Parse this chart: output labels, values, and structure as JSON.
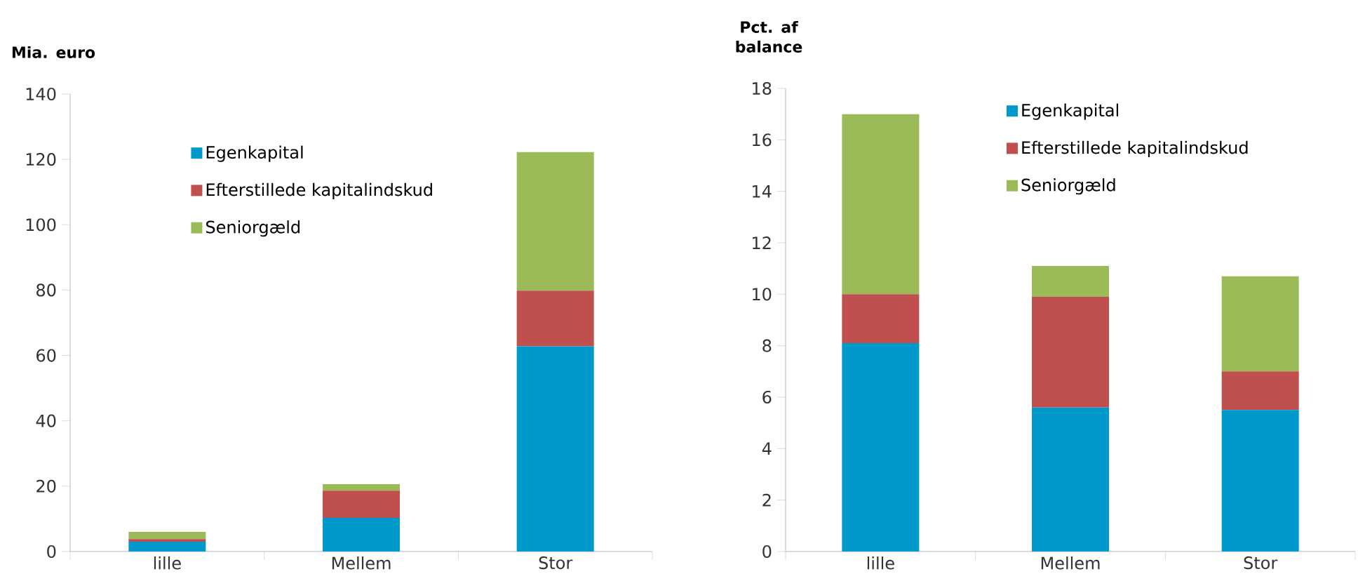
{
  "chart_data": [
    {
      "type": "bar",
      "stacked": true,
      "ylabel": "Mia. euro",
      "categories": [
        "lille",
        "Mellem",
        "Stor"
      ],
      "ylim": [
        0,
        140
      ],
      "yticks": [
        0,
        20,
        40,
        60,
        80,
        100,
        120,
        140
      ],
      "legend": "top left",
      "series": [
        {
          "name": "Egenkapital",
          "color": "#0099cc",
          "values": [
            3,
            10.3,
            62.8
          ]
        },
        {
          "name": "Efterstillede kapitalindskud",
          "color": "#c0504d",
          "values": [
            0.8,
            8.3,
            17
          ]
        },
        {
          "name": "Seniorgæld",
          "color": "#9bbb59",
          "values": [
            2.2,
            2,
            42.4
          ]
        }
      ]
    },
    {
      "type": "bar",
      "stacked": true,
      "ylabel": "Pct. af balance",
      "categories": [
        "lille",
        "Mellem",
        "Stor"
      ],
      "ylim": [
        0,
        18
      ],
      "yticks": [
        0,
        2,
        4,
        6,
        8,
        10,
        12,
        14,
        16,
        18
      ],
      "legend": "top",
      "series": [
        {
          "name": "Egenkapital",
          "color": "#0099cc",
          "values": [
            8.1,
            5.6,
            5.5
          ]
        },
        {
          "name": "Efterstillede kapitalindskud",
          "color": "#c0504d",
          "values": [
            1.9,
            4.3,
            1.5
          ]
        },
        {
          "name": "Seniorgæld",
          "color": "#9bbb59",
          "values": [
            7.0,
            1.2,
            3.7
          ]
        }
      ]
    }
  ]
}
